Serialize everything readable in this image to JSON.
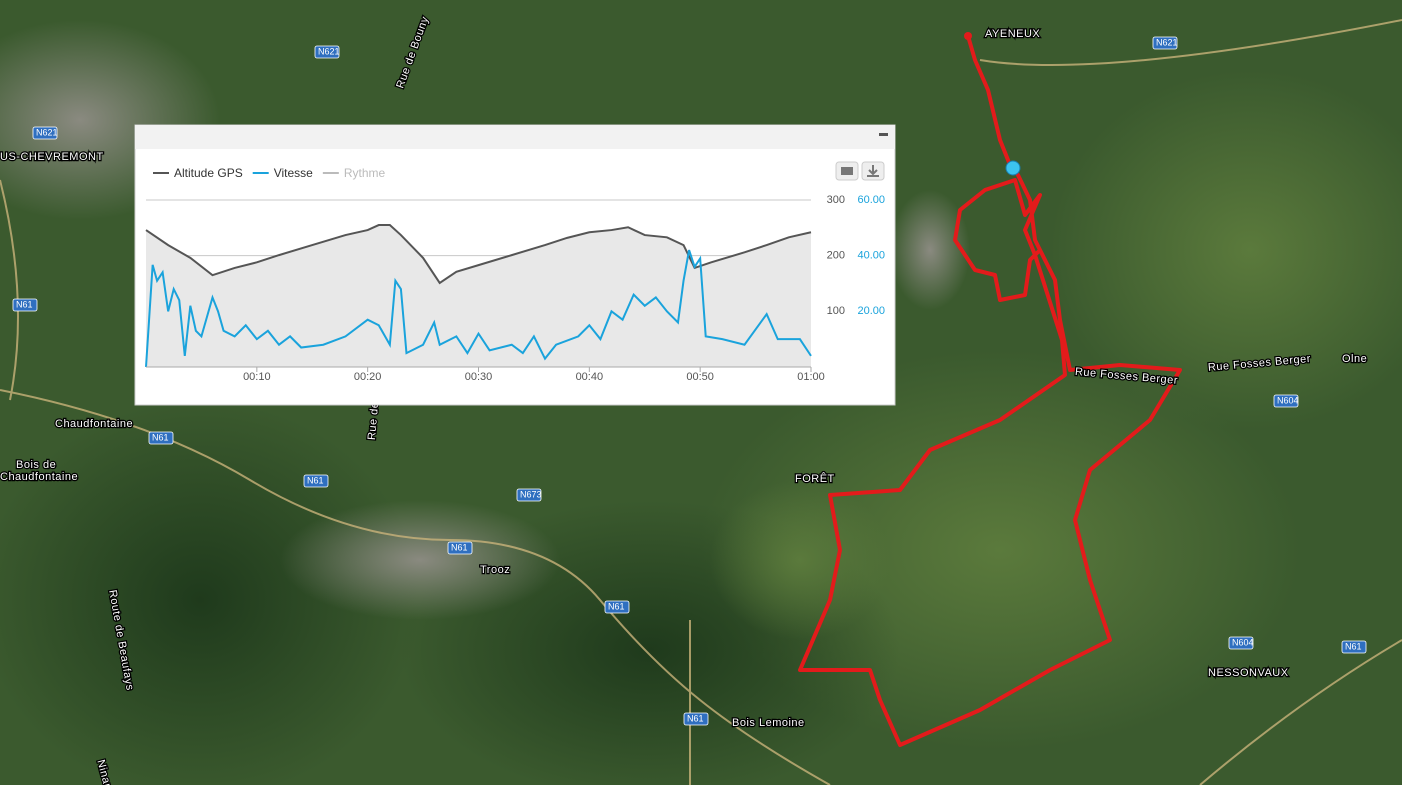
{
  "map": {
    "labels": [
      "AYENEUX",
      "N621",
      "N621",
      "N621",
      "Rue de Bouny",
      "US-CHEVREMONT",
      "N61",
      "Chaudfontaine",
      "N61",
      "Bois de",
      "Chaudfontaine",
      "N61",
      "N673",
      "N61",
      "Trooz",
      "N61",
      "N61",
      "FORÊT",
      "Rue Fosses Berger",
      "Rue Fosses Berger",
      "Olne",
      "N604",
      "N604",
      "NESSONVAUX",
      "N61",
      "Bois Lemoine",
      "Route de Beaufays",
      "Ninane",
      "Rue de"
    ]
  },
  "chart_data": {
    "type": "line",
    "legend": "top-left",
    "grid": true,
    "xlim": [
      0,
      60
    ],
    "xticks": [
      {
        "value": 10,
        "label": "00:10"
      },
      {
        "value": 20,
        "label": "00:20"
      },
      {
        "value": 30,
        "label": "00:30"
      },
      {
        "value": 40,
        "label": "00:40"
      },
      {
        "value": 50,
        "label": "00:50"
      },
      {
        "value": 60,
        "label": "01:00"
      }
    ],
    "ylim": [
      0,
      300
    ],
    "yticks": [
      100,
      200,
      300
    ],
    "y2lim": [
      0,
      60
    ],
    "y2ticks": [
      {
        "value": 20,
        "label": "20.00"
      },
      {
        "value": 40,
        "label": "40.00"
      },
      {
        "value": 60,
        "label": "60.00"
      }
    ],
    "series": [
      {
        "name": "Altitude GPS",
        "color": "#555555",
        "area": "#e8e8e8",
        "x": [
          0,
          2,
          4,
          6,
          8,
          10,
          12,
          15,
          18,
          20,
          21,
          22,
          23,
          25,
          26.5,
          28,
          30,
          33,
          36,
          38,
          40,
          42,
          43.5,
          45,
          47,
          48.5,
          49.5,
          51,
          54,
          56,
          58,
          60
        ],
        "values": [
          246,
          219,
          196,
          165,
          178,
          188,
          201,
          219,
          237,
          246,
          255,
          255,
          237,
          196,
          151,
          171,
          183,
          201,
          219,
          232,
          242,
          246,
          251,
          237,
          233,
          219,
          178,
          188,
          206,
          219,
          233,
          242
        ]
      },
      {
        "name": "Vitesse",
        "color": "#1aa3dc",
        "axis": "y2",
        "x": [
          0,
          0.6,
          1,
          1.5,
          2,
          2.5,
          3,
          3.5,
          4,
          4.5,
          5,
          6,
          6.5,
          7,
          8,
          9,
          10,
          11,
          12,
          13,
          14,
          16,
          18,
          20,
          21,
          22,
          22.5,
          23,
          23.5,
          25,
          26,
          26.5,
          28,
          29,
          30,
          31,
          33,
          34,
          35,
          36,
          37,
          39,
          40,
          41,
          42,
          43,
          44,
          45,
          46,
          47,
          48,
          48.5,
          49,
          49.5,
          50,
          50.5,
          52,
          54,
          56,
          57,
          59,
          60
        ],
        "values": [
          0,
          36.7,
          31,
          34,
          20,
          28,
          24,
          4,
          22,
          13,
          11,
          25,
          20,
          13,
          11,
          15,
          10,
          13,
          8,
          11,
          7,
          8,
          11,
          17,
          15,
          8,
          31,
          28,
          5,
          8,
          16,
          8,
          11,
          5,
          12,
          6,
          8,
          5,
          11,
          3,
          8,
          11,
          15,
          10,
          20,
          17,
          26,
          22,
          25,
          20,
          16,
          31,
          42,
          36,
          39,
          11,
          10,
          8,
          19,
          10,
          10,
          4
        ]
      },
      {
        "name": "Rythme",
        "color": "#bbbbbb",
        "visible": false
      }
    ]
  }
}
